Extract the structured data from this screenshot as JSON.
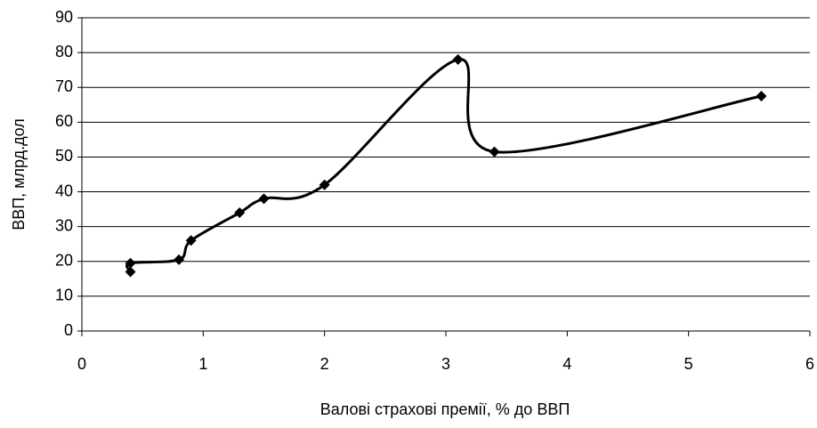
{
  "chart_data": {
    "type": "line",
    "x_label": "Валові страхові премії, % до ВВП",
    "y_label": "ВВП, млрд.дол",
    "series": [
      {
        "color": "#000000",
        "x": [
          0.4,
          0.4,
          0.8,
          0.9,
          1.3,
          1.5,
          2.0,
          3.1,
          3.4,
          5.6
        ],
        "values": [
          17,
          19.5,
          20.5,
          26,
          34,
          38,
          42,
          78,
          51.5,
          67.5
        ]
      }
    ],
    "xlim": [
      0,
      6
    ],
    "xticks": [
      0,
      1,
      2,
      3,
      4,
      5,
      6
    ],
    "ylim": [
      0,
      90
    ],
    "yticks": [
      0,
      10,
      20,
      30,
      40,
      50,
      60,
      70,
      80,
      90
    ],
    "grid": true,
    "marker": "diamond",
    "smooth": true
  }
}
